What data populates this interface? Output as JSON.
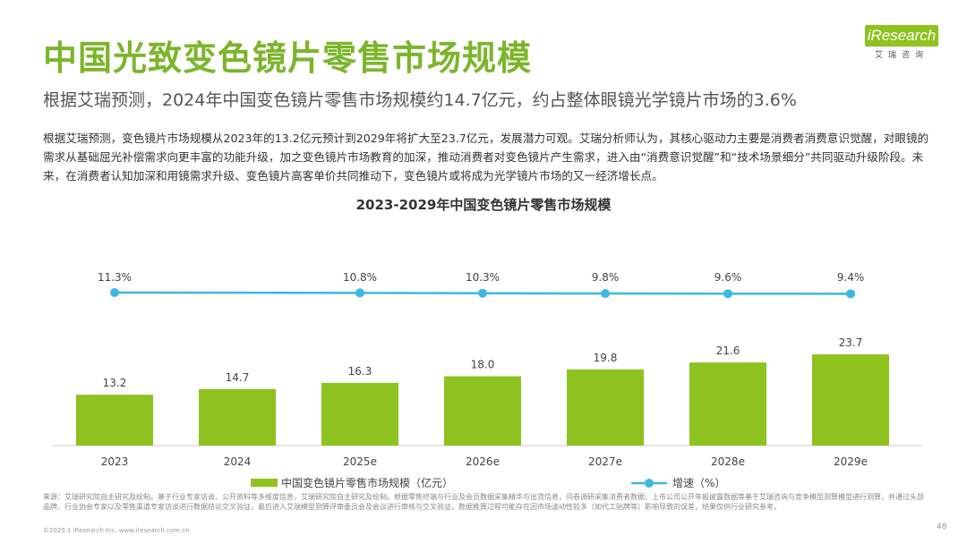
{
  "page": {
    "title": "中国光致变色镜片零售市场规模",
    "subtitle": "根据艾瑞预测，2024年中国变色镜片零售市场规模约14.7亿元，约占整体眼镜光学镜片市场的3.6%",
    "body": "根据艾瑞预测，变色镜片市场规模从2023年的13.2亿元预计到2029年将扩大至23.7亿元，发展潜力可观。艾瑞分析师认为，其核心驱动力主要是消费者消费意识觉醒，对眼镜的需求从基础屈光补偿需求向更丰富的功能升级，加之变色镜片市场教育的加深，推动消费者对变色镜片产生需求，进入由“消费意识觉醒”和“技术场景细分”共同驱动升级阶段。未来，在消费者认知加深和用镜需求升级、变色镜片高客单价共同推动下，变色镜片或将成为光学镜片市场的又一经济增长点。",
    "source": "来源：艾瑞研究院自主研究及绘制。基于行业专家访谈、公开资料等多维度信息，艾瑞研究院自主研究及绘制。根据零售终端与行业及会员数据采集精华与出货信息，问卷调研采集消费者数据，上市公司公开年报披露数据等基于艾瑞咨询与竞争模型测算模型进行测算，并通过头部品牌、行业协会专家以及零售渠道专家访谈进行数据结论交叉验证，最后进入艾瑞模型测算评审委员会及会议进行审核与交叉验证，数据推算过程可能存在因市场波动性较多（如代工贴牌等）影响导致的误差，结果仅供行业研究参考。",
    "copyright": "©2025.1 iResearch Inc. www.iresearch.com.cn",
    "page_number": "48"
  },
  "logo": {
    "brand": "iResearch",
    "sub": "艾瑞咨询"
  },
  "colors": {
    "accent": "#7cb52b",
    "bar": "#8dc21f",
    "line": "#3fb8e0"
  },
  "chart_data": {
    "type": "bar",
    "title": "2023-2029年中国变色镜片零售市场规模",
    "categories": [
      "2023",
      "2024",
      "2025e",
      "2026e",
      "2027e",
      "2028e",
      "2029e"
    ],
    "series": [
      {
        "name": "中国变色镜片零售市场规模（亿元）",
        "type": "bar",
        "values": [
          13.2,
          14.7,
          16.3,
          18.0,
          19.8,
          21.6,
          23.7
        ],
        "labels": [
          "13.2",
          "14.7",
          "16.3",
          "18.0",
          "19.8",
          "21.6",
          "23.7"
        ]
      },
      {
        "name": "增速（%）",
        "type": "line",
        "values": [
          11.3,
          null,
          10.8,
          10.3,
          9.8,
          9.6,
          9.4
        ],
        "labels": [
          "11.3%",
          "",
          "10.8%",
          "10.3%",
          "9.8%",
          "9.6%",
          "9.4%"
        ]
      }
    ],
    "grid": false,
    "legend_position": "bottom"
  }
}
